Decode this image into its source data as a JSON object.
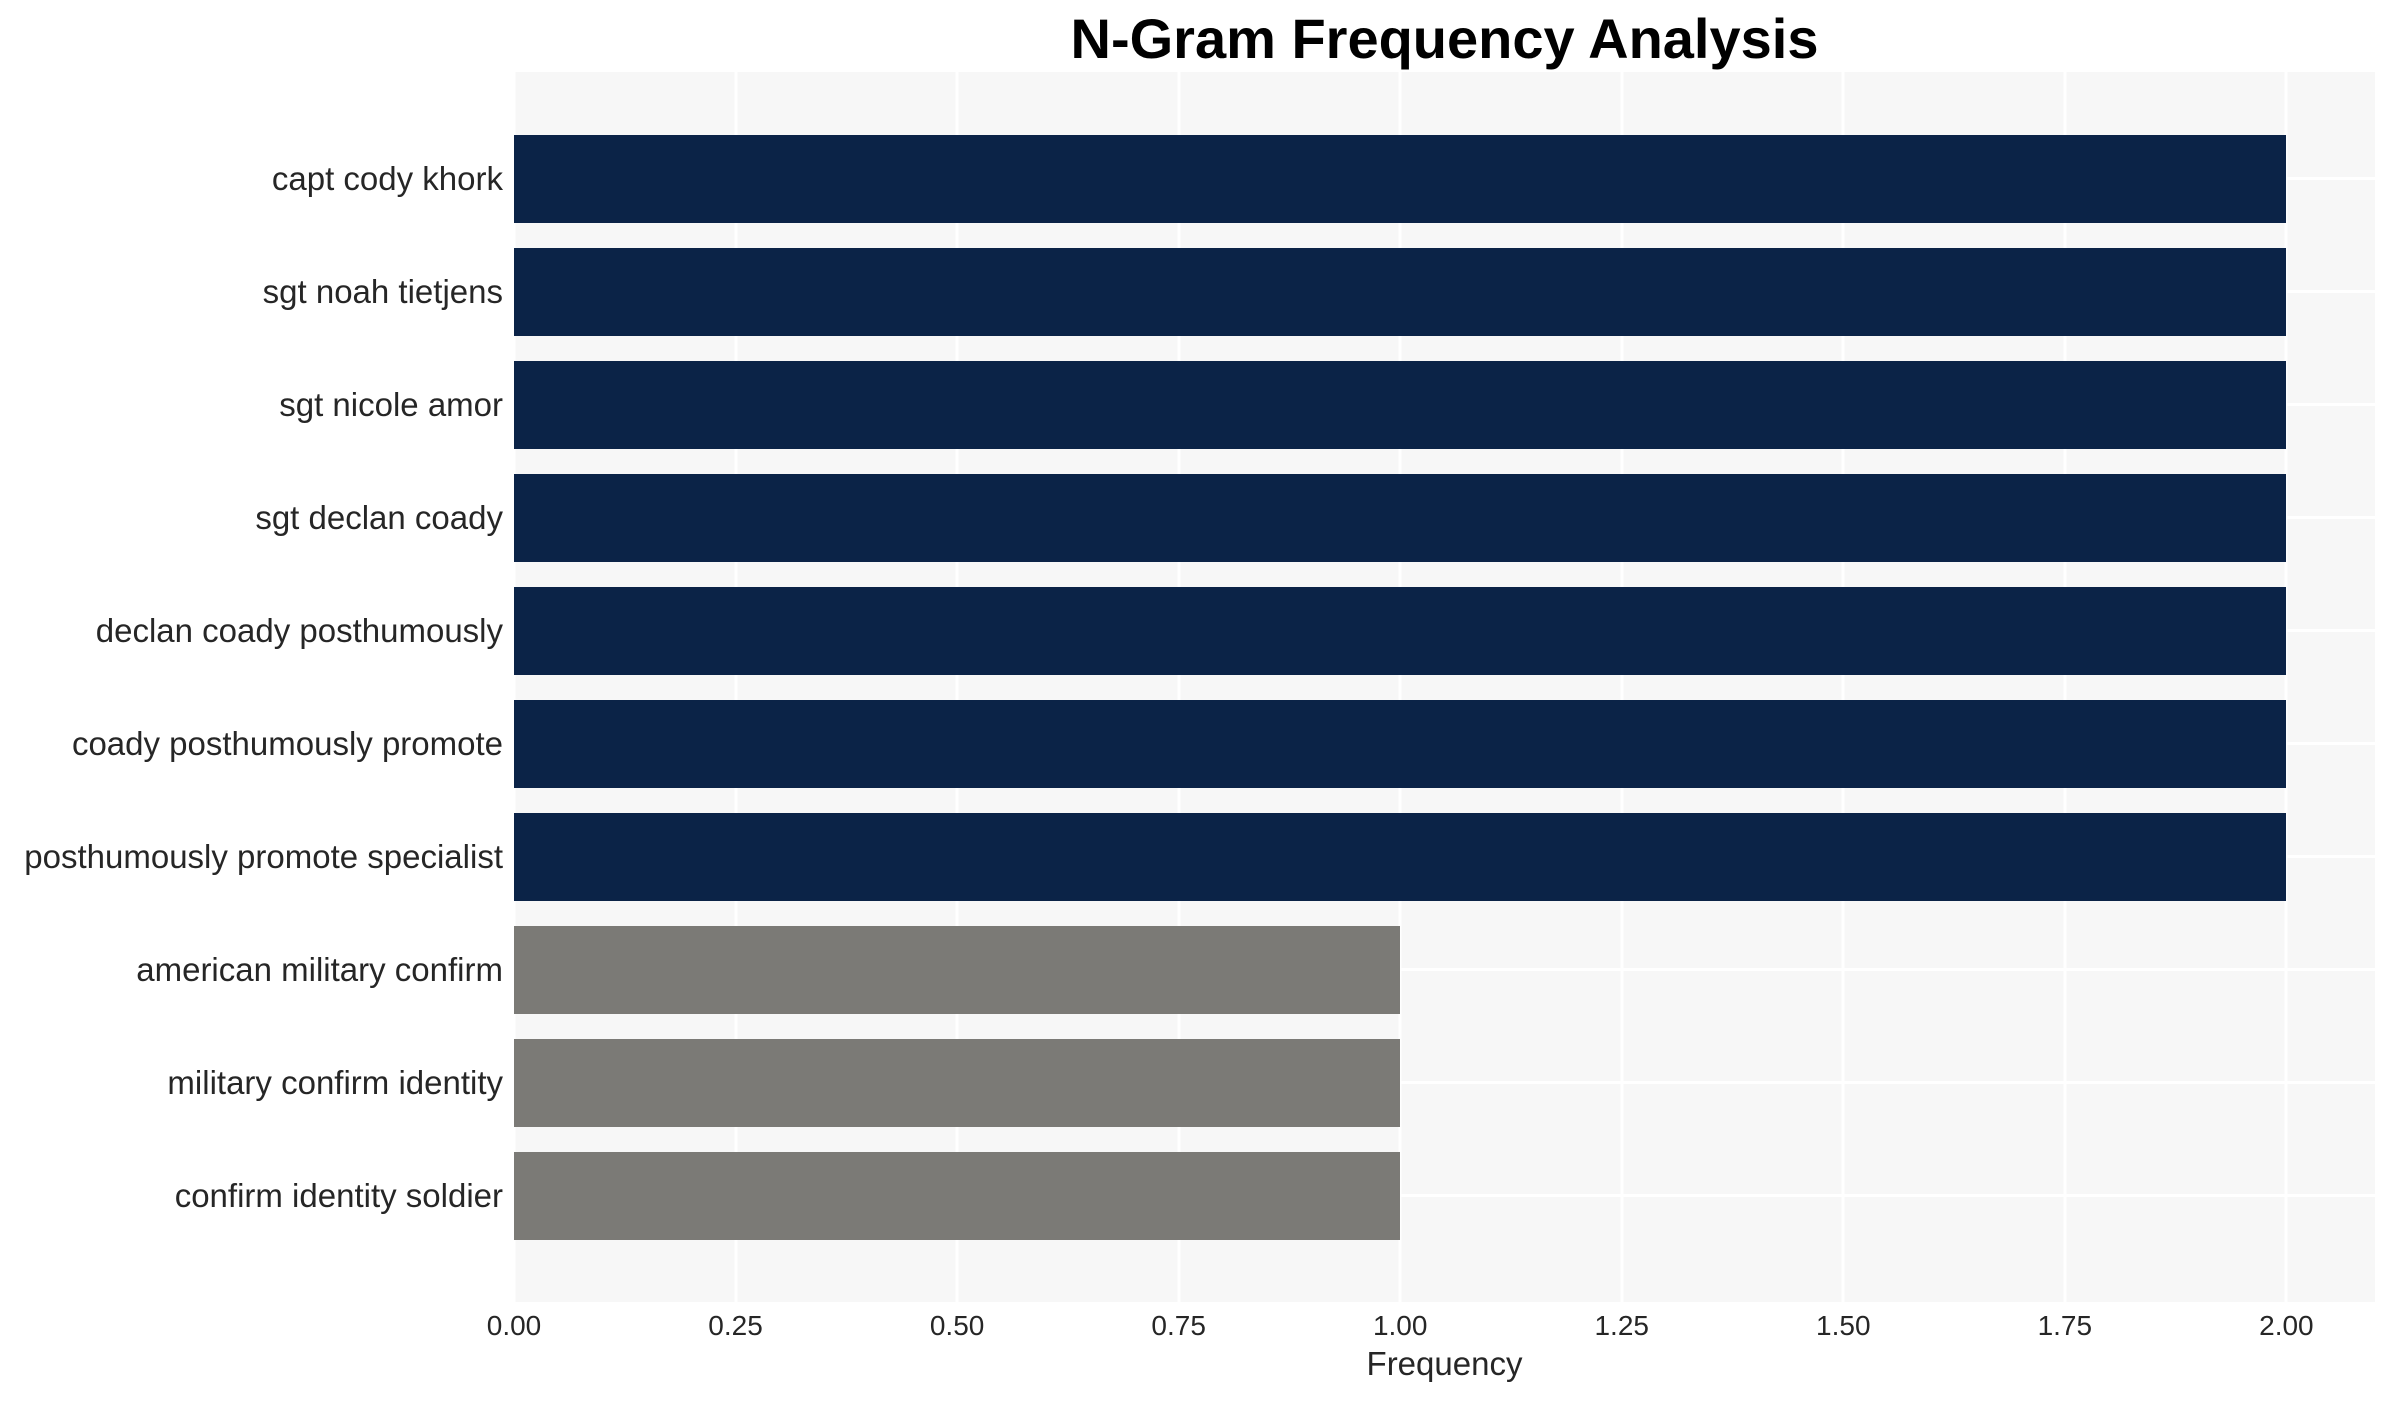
{
  "chart_data": {
    "type": "bar",
    "orientation": "horizontal",
    "title": "N-Gram Frequency Analysis",
    "xlabel": "Frequency",
    "ylabel": "",
    "categories": [
      "capt cody khork",
      "sgt noah tietjens",
      "sgt nicole amor",
      "sgt declan coady",
      "declan coady posthumously",
      "coady posthumously promote",
      "posthumously promote specialist",
      "american military confirm",
      "military confirm identity",
      "confirm identity soldier"
    ],
    "values": [
      2,
      2,
      2,
      2,
      2,
      2,
      2,
      1,
      1,
      1
    ],
    "bar_colors": [
      "#0b2347",
      "#0b2347",
      "#0b2347",
      "#0b2347",
      "#0b2347",
      "#0b2347",
      "#0b2347",
      "#7b7a76",
      "#7b7a76",
      "#7b7a76"
    ],
    "xlim": [
      0,
      2.1
    ],
    "xticks": [
      0,
      0.25,
      0.5,
      0.75,
      1.0,
      1.25,
      1.5,
      1.75,
      2.0
    ],
    "xtick_labels": [
      "0.00",
      "0.25",
      "0.50",
      "0.75",
      "1.00",
      "1.25",
      "1.50",
      "1.75",
      "2.00"
    ],
    "grid": {
      "visible": true,
      "color": "#ffffff"
    },
    "plot_background": "#f7f7f7",
    "legend": "none",
    "colors": {
      "high_frequency_bar": "#0b2347",
      "low_frequency_bar": "#7b7a76",
      "title_text": "#000000",
      "tick_text": "#262626"
    }
  }
}
